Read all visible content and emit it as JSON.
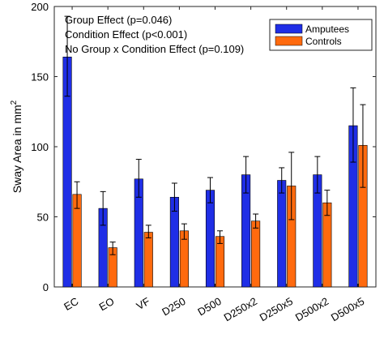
{
  "chart_data": {
    "type": "bar",
    "categories": [
      "EC",
      "EO",
      "VF",
      "D250",
      "D500",
      "D250x2",
      "D250x5",
      "D500x2",
      "D500x5"
    ],
    "series": [
      {
        "name": "Amputees",
        "color": "#1f2ee6",
        "values": [
          164,
          56,
          77,
          64,
          69,
          80,
          76,
          80,
          115
        ],
        "error_low": [
          136,
          44,
          64,
          54,
          60,
          67,
          67,
          67,
          89
        ],
        "error_high": [
          193,
          68,
          91,
          74,
          78,
          93,
          85,
          93,
          142
        ]
      },
      {
        "name": "Controls",
        "color": "#ff6a0e",
        "values": [
          66,
          28,
          39,
          40,
          36,
          47,
          72,
          60,
          101
        ],
        "error_low": [
          56,
          23,
          35,
          34,
          31,
          42,
          48,
          51,
          71
        ],
        "error_high": [
          75,
          32,
          44,
          45,
          40,
          52,
          96,
          69,
          130
        ]
      }
    ],
    "ylabel": "Sway Area in mm",
    "ylabel_superscript": "2",
    "xlabel": "",
    "title": "",
    "ylim": [
      0,
      200
    ],
    "yticks": [
      0,
      50,
      100,
      150,
      200
    ],
    "legend_position": "top-right",
    "grid": false,
    "annotations": [
      "Group Effect (p=0.046)",
      "Condition Effect (p<0.001)",
      "No Group x Condition Effect (p=0.109)"
    ]
  }
}
